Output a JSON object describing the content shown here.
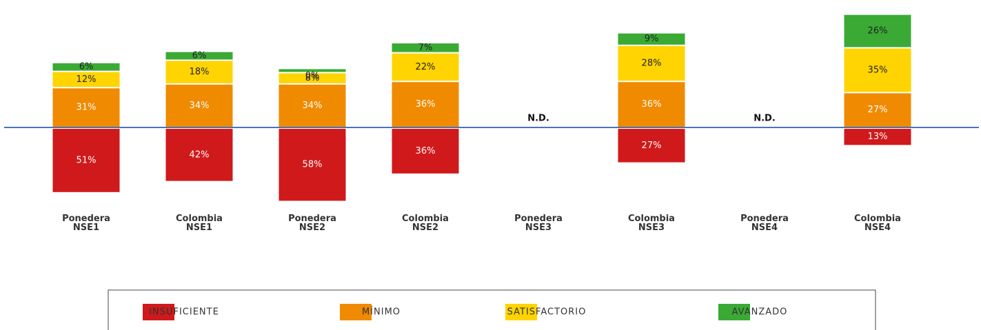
{
  "chart_data": {
    "type": "diverging-stacked-bar",
    "categories": [
      "Ponedera NSE1",
      "Colombia NSE1",
      "Ponedera NSE2",
      "Colombia NSE2",
      "Ponedera NSE3",
      "Colombia NSE3",
      "Ponedera NSE4",
      "Colombia NSE4"
    ],
    "missing_label": "N.D.",
    "series": [
      {
        "name": "INSUFICIENTE",
        "color": "#d0191b",
        "direction": "down",
        "values": [
          51,
          42,
          58,
          36,
          null,
          27,
          null,
          13
        ],
        "value_labels": [
          "51%",
          "42%",
          "58%",
          "36%",
          null,
          "27%",
          null,
          "13%"
        ]
      },
      {
        "name": "MÍNIMO",
        "color": "#f08a00",
        "direction": "up",
        "values": [
          31,
          34,
          34,
          36,
          null,
          36,
          null,
          27
        ],
        "value_labels": [
          "31%",
          "34%",
          "34%",
          "36%",
          null,
          "36%",
          null,
          "27%"
        ]
      },
      {
        "name": "SATISFACTORIO",
        "color": "#ffd400",
        "direction": "up",
        "values": [
          12,
          18,
          8,
          22,
          null,
          28,
          null,
          35
        ],
        "value_labels": [
          "12%",
          "18%",
          "8%",
          "22%",
          null,
          "28%",
          null,
          "35%"
        ]
      },
      {
        "name": "AVANZADO",
        "color": "#3aaa35",
        "direction": "up",
        "values": [
          6,
          6,
          0,
          7,
          null,
          9,
          null,
          26
        ],
        "value_labels": [
          "6%",
          "6%",
          "0%",
          "7%",
          null,
          "9%",
          null,
          "26%"
        ]
      }
    ],
    "legend": "bottom"
  }
}
